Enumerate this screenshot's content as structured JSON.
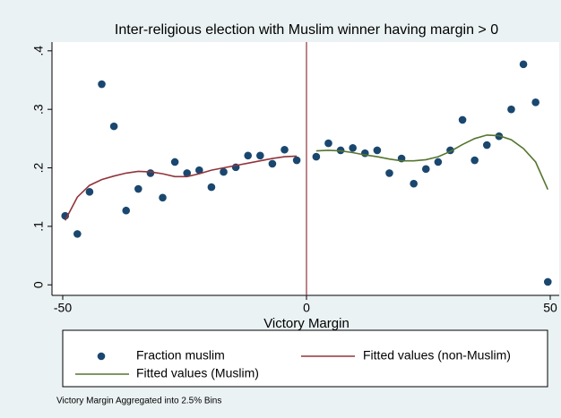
{
  "chart_data": {
    "type": "scatter",
    "title": "Inter-religious election with Muslim winner having margin > 0",
    "x_label": "Victory Margin",
    "note": "Victory Margin Aggregated into 2.5% Bins",
    "xlim": [
      -50,
      50
    ],
    "xticks": [
      -50,
      0,
      50
    ],
    "ylim": [
      -0.018,
      0.415
    ],
    "yticks": [
      0,
      {
        "value": 0.1,
        "label": ".1"
      },
      {
        "value": 0.2,
        "label": ".2"
      },
      {
        "value": 0.3,
        "label": ".3"
      },
      {
        "value": 0.4,
        "label": ".4"
      }
    ],
    "xline": 0,
    "xline_color": "#90353b",
    "series": [
      {
        "name": "Fraction muslim",
        "mode": "markers",
        "color": "#1a476f",
        "x": [
          -49.5,
          -47,
          -44.5,
          -42,
          -39.5,
          -37,
          -34.5,
          -32,
          -29.5,
          -27,
          -24.5,
          -22,
          -19.5,
          -17,
          -14.5,
          -12,
          -9.5,
          -7,
          -4.5,
          -2,
          2,
          4.5,
          7,
          9.5,
          12,
          14.5,
          17,
          19.5,
          22,
          24.5,
          27,
          29.5,
          32,
          34.5,
          37,
          39.5,
          42,
          44.5,
          47,
          49.5
        ],
        "values": [
          0.118,
          0.087,
          0.159,
          0.343,
          0.271,
          0.127,
          0.164,
          0.191,
          0.149,
          0.21,
          0.191,
          0.196,
          0.167,
          0.193,
          0.201,
          0.221,
          0.221,
          0.207,
          0.231,
          0.213,
          0.219,
          0.242,
          0.23,
          0.234,
          0.225,
          0.23,
          0.191,
          0.216,
          0.173,
          0.198,
          0.21,
          0.23,
          0.282,
          0.213,
          0.239,
          0.254,
          0.3,
          0.377,
          0.312,
          0.005
        ]
      },
      {
        "name": "Fitted values (non-Muslim)",
        "mode": "lines",
        "color": "#90353b",
        "x": [
          -49.5,
          -47,
          -44.5,
          -42,
          -39.5,
          -37,
          -34.5,
          -32,
          -29.5,
          -27,
          -24.5,
          -22,
          -19.5,
          -17,
          -14.5,
          -12,
          -9.5,
          -7,
          -4.5,
          -2
        ],
        "values": [
          0.11,
          0.15,
          0.17,
          0.18,
          0.186,
          0.191,
          0.194,
          0.193,
          0.19,
          0.185,
          0.185,
          0.19,
          0.196,
          0.2,
          0.204,
          0.208,
          0.212,
          0.216,
          0.219,
          0.22
        ]
      },
      {
        "name": "Fitted values (Muslim)",
        "mode": "lines",
        "color": "#55752f",
        "x": [
          2,
          4.5,
          7,
          9.5,
          12,
          14.5,
          17,
          19.5,
          22,
          24.5,
          27,
          29.5,
          32,
          34.5,
          37,
          39.5,
          42,
          44.5,
          47,
          49.5
        ],
        "values": [
          0.229,
          0.23,
          0.229,
          0.226,
          0.222,
          0.219,
          0.215,
          0.212,
          0.212,
          0.214,
          0.219,
          0.228,
          0.24,
          0.25,
          0.256,
          0.255,
          0.248,
          0.233,
          0.21,
          0.163
        ]
      }
    ]
  }
}
